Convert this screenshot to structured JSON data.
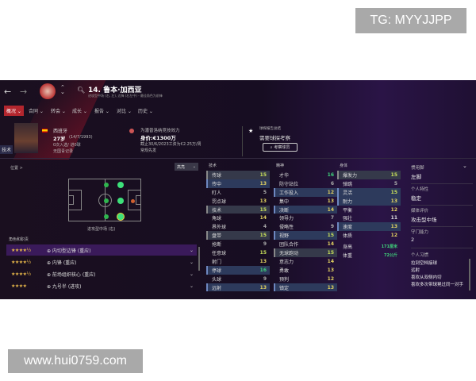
{
  "watermarks": {
    "top": "TG: MYYJJPP",
    "bottom": "www.hui0759.com"
  },
  "header": {
    "title": "14. 鲁本·加西亚",
    "subtitle": "进攻型中场 (右, 左), 边锋 (右左中) - 最佳角色为前锋"
  },
  "tabs": [
    {
      "label": "概况 ⌄",
      "active": true
    },
    {
      "label": "合同 ⌄"
    },
    {
      "label": "转会 ⌄"
    },
    {
      "label": "成长 ⌄"
    },
    {
      "label": "报告 ⌄"
    },
    {
      "label": "对比 ⌄"
    },
    {
      "label": "历史 ⌄"
    }
  ],
  "player": {
    "side_tag": "技术",
    "nation": "西班牙",
    "age": "27岁",
    "dob": "(14/7/1993)",
    "caps": "0次入选/ 进0球",
    "youth": "无国青记录"
  },
  "club": {
    "team": "为潘普洛纳竞技效力",
    "value": "身价:€1300万",
    "wage": "截止30/6/2023工资为€2.25万/周",
    "status": "常规先发"
  },
  "scout": {
    "label": "球探报告总结",
    "status": "需要球探考察",
    "button": "考察球员"
  },
  "position": {
    "label": "位置 >",
    "highlight": "高亮",
    "pos_label": "进攻型中场 (右)",
    "roles_title": "角色和职责"
  },
  "roles": [
    {
      "stars": "★★★★½",
      "name": "⊕ 内切型边锋 (重应)",
      "selected": true
    },
    {
      "stars": "★★★★½",
      "name": "⊕ 内锋 (重应)"
    },
    {
      "stars": "★★★★½",
      "name": "⊕ 前场组织核心 (重应)"
    },
    {
      "stars": "★★★★",
      "name": "⊕ 九号半 (进攻)"
    }
  ],
  "attributes": {
    "technical": {
      "title": "技术",
      "items": [
        {
          "n": "传球",
          "v": "15",
          "h": "g"
        },
        {
          "n": "传中",
          "v": "13",
          "h": "b"
        },
        {
          "n": "盯人",
          "v": "5"
        },
        {
          "n": "罚点球",
          "v": "13"
        },
        {
          "n": "技术",
          "v": "15",
          "h": "g"
        },
        {
          "n": "角球",
          "v": "14"
        },
        {
          "n": "界外球",
          "v": "4"
        },
        {
          "n": "盘带",
          "v": "15",
          "h": "g"
        },
        {
          "n": "抢断",
          "v": "9"
        },
        {
          "n": "任意球",
          "v": "15"
        },
        {
          "n": "射门",
          "v": "13"
        },
        {
          "n": "停球",
          "v": "16",
          "h": "b"
        },
        {
          "n": "头球",
          "v": "9"
        },
        {
          "n": "远射",
          "v": "13",
          "h": "b"
        }
      ]
    },
    "mental": {
      "title": "精神",
      "items": [
        {
          "n": "才华",
          "v": "16"
        },
        {
          "n": "防守站位",
          "v": "6"
        },
        {
          "n": "工作投入",
          "v": "12",
          "h": "b"
        },
        {
          "n": "集中",
          "v": "13"
        },
        {
          "n": "决断",
          "v": "14",
          "h": "b"
        },
        {
          "n": "领导力",
          "v": "7"
        },
        {
          "n": "侵略性",
          "v": "9"
        },
        {
          "n": "视野",
          "v": "15",
          "h": "b"
        },
        {
          "n": "团队合作",
          "v": "14"
        },
        {
          "n": "无球跑动",
          "v": "15",
          "h": "g"
        },
        {
          "n": "意志力",
          "v": "14"
        },
        {
          "n": "勇敢",
          "v": "13"
        },
        {
          "n": "预判",
          "v": "12"
        },
        {
          "n": "镇定",
          "v": "13",
          "h": "b"
        }
      ]
    },
    "physical": {
      "title": "身体",
      "items": [
        {
          "n": "爆发力",
          "v": "15",
          "h": "g"
        },
        {
          "n": "弹跳",
          "v": "5"
        },
        {
          "n": "灵活",
          "v": "15",
          "h": "b"
        },
        {
          "n": "耐力",
          "v": "13",
          "h": "b"
        },
        {
          "n": "平衡",
          "v": "12"
        },
        {
          "n": "强壮",
          "v": "11"
        },
        {
          "n": "速度",
          "v": "13",
          "h": "b"
        },
        {
          "n": "体质",
          "v": "12"
        },
        {
          "n": "身高",
          "v": "171厘米"
        },
        {
          "n": "体重",
          "v": "72公斤"
        }
      ]
    }
  },
  "side": [
    {
      "label": "惯用脚",
      "value": "左脚"
    },
    {
      "label": "个人特性",
      "value": "稳定"
    },
    {
      "label": "媒体评价",
      "value": "攻击型中场"
    },
    {
      "label": "守门能力",
      "value": "2"
    }
  ],
  "habits": {
    "label": "个人习惯",
    "items": [
      "拉到空档接球",
      "远射",
      "喜欢从双侧内切",
      "喜欢多次带球晃过同一对手"
    ]
  },
  "colors": {
    "accent": "#b3262e",
    "highlight_row": "#2d3a5c",
    "green": "#3fd07a"
  }
}
